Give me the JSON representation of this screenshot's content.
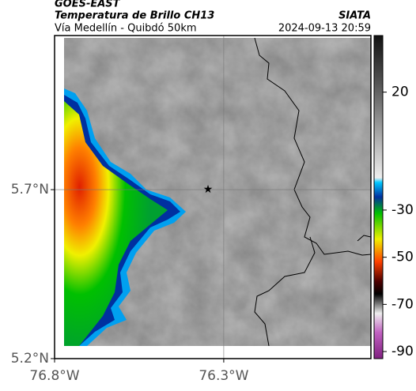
{
  "header": {
    "title": "GOES-EAST",
    "subtitle": "Temperatura de Brillo CH13",
    "source": "SIATA",
    "location": "Vía Medellín - Quibdó 50km",
    "datetime": "2024-09-13 20:59"
  },
  "map": {
    "lat_lim": [
      5.2,
      6.156
    ],
    "lon_lim": [
      -76.8,
      -75.865
    ],
    "lat_ticks": [
      {
        "value": 5.7,
        "label": "5.7°N"
      },
      {
        "value": 5.2,
        "label": "5.2°N"
      }
    ],
    "lon_ticks": [
      {
        "value": -76.8,
        "label": "76.8°W"
      },
      {
        "value": -76.3,
        "label": "76.3°W"
      }
    ],
    "colorbar": {
      "lim": [
        -93,
        44
      ],
      "ticks": [
        20,
        -30,
        -50,
        -70,
        -90
      ]
    }
  }
}
